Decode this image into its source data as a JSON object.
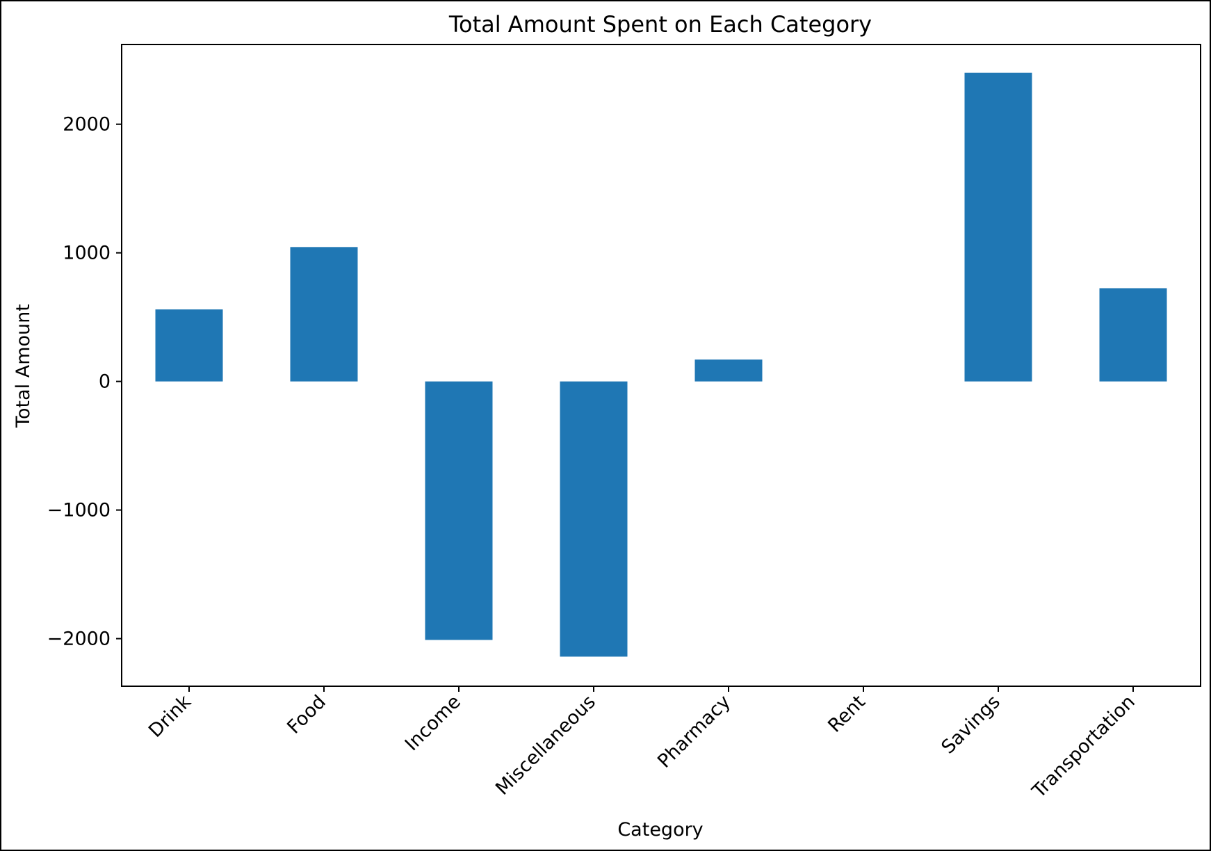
{
  "chart_data": {
    "type": "bar",
    "title": "Total Amount Spent on Each Category",
    "xlabel": "Category",
    "ylabel": "Total Amount",
    "categories": [
      "Drink",
      "Food",
      "Income",
      "Miscellaneous",
      "Pharmacy",
      "Rent",
      "Savings",
      "Transportation"
    ],
    "values": [
      560,
      1045,
      -2010,
      -2140,
      170,
      0,
      2400,
      725
    ],
    "ylim": [
      -2370,
      2620
    ],
    "yticks": [
      -2000,
      -1000,
      0,
      1000,
      2000
    ],
    "ytick_labels": [
      "−2000",
      "−1000",
      "0",
      "1000",
      "2000"
    ],
    "bar_color": "#1f77b4",
    "grid": false,
    "legend": "none"
  }
}
